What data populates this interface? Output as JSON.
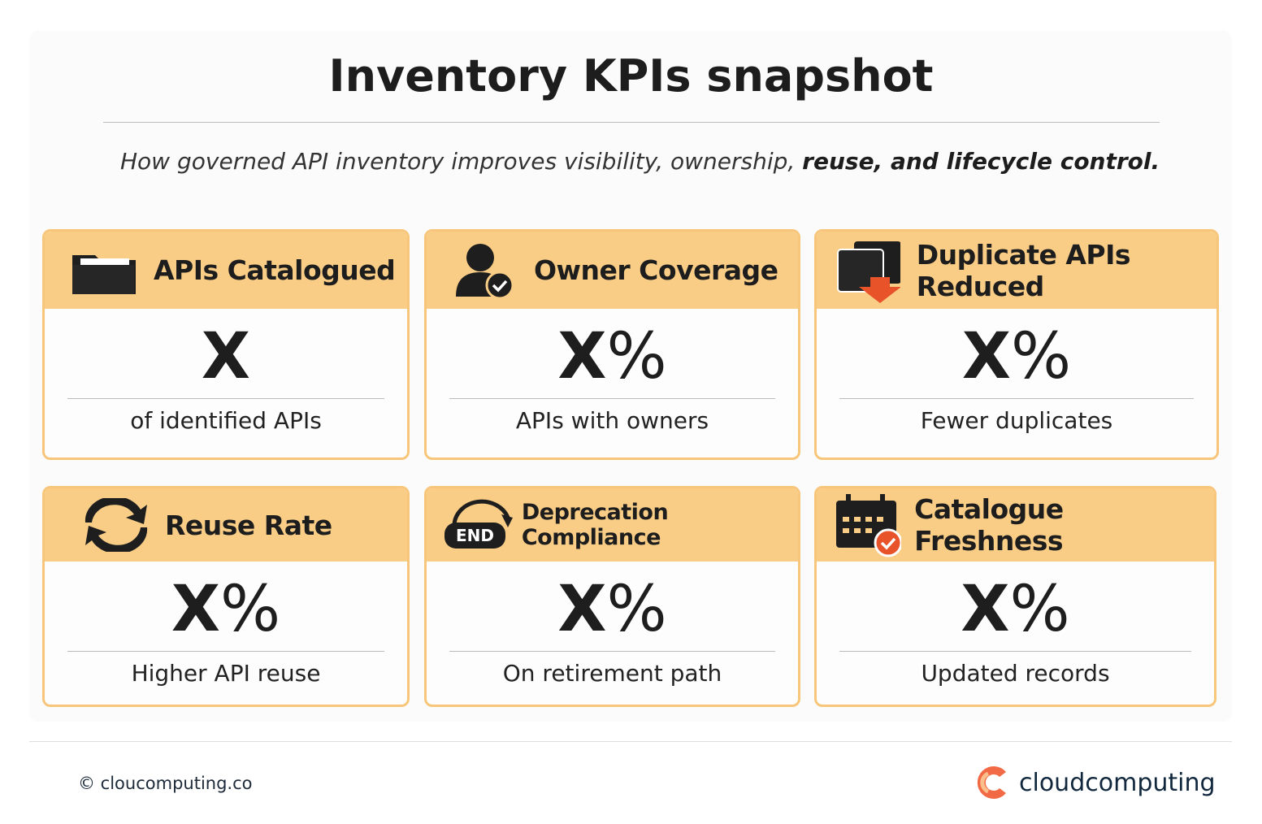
{
  "title": "Inventory KPIs snapshot",
  "subtitle": {
    "plain": "How governed API inventory improves visibility, ownership, ",
    "bold": "reuse,  and lifecycle control."
  },
  "cards": [
    {
      "title": "APIs Catalogued",
      "icon": "folder-icon",
      "value": "X",
      "unit": "",
      "label": "of identified APIs"
    },
    {
      "title": "Owner Coverage",
      "icon": "user-check-icon",
      "value": "X",
      "unit": "%",
      "label": "APIs with owners"
    },
    {
      "title": "Duplicate APIs Reduced",
      "icon": "duplicate-down-icon",
      "value": "X",
      "unit": "%",
      "label": "Fewer duplicates"
    },
    {
      "title": "Reuse Rate",
      "icon": "refresh-icon",
      "value": "X",
      "unit": "%",
      "label": "Higher API reuse"
    },
    {
      "title": "Deprecation Compliance",
      "icon": "end-icon",
      "icon_text": "END",
      "value": "X",
      "unit": "%",
      "label": "On retirement path"
    },
    {
      "title": "Catalogue Freshness",
      "icon": "calendar-check-icon",
      "value": "X",
      "unit": "%",
      "label": "Updated records"
    }
  ],
  "footer": {
    "copyright": "© cloucomputing.co",
    "brand": "cloudcomputing"
  },
  "colors": {
    "header": "#f9cd86",
    "border": "#f8c67a",
    "accent": "#e8532a"
  }
}
